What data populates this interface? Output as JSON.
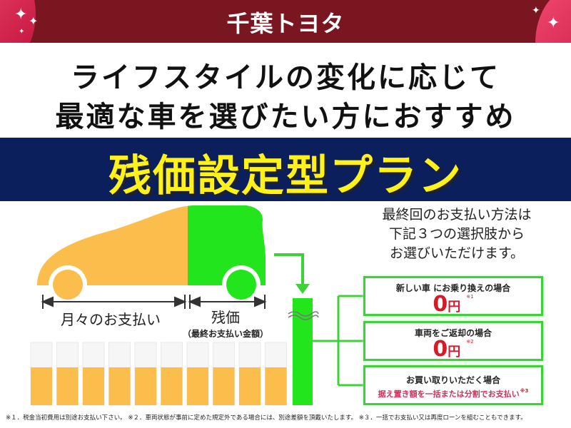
{
  "header": {
    "logo": "千葉トヨタ",
    "brand_color": "#7a1620"
  },
  "headline": {
    "line1": "ライフスタイルの変化に応じて",
    "line2": "最適な車を選びたい方におすすめ"
  },
  "plan_title": "残価設定型プラン",
  "diagram": {
    "monthly_label": "月々のお支払い",
    "residual_label": "残価",
    "residual_sub": "（最終お支払い金額）",
    "monthly_color": "#fbbd4c",
    "residual_color": "#22e51c"
  },
  "intro": {
    "line1": "最終回のお支払い方法は",
    "line2": "下記３つの選択肢から",
    "line3": "お選びいただけます。"
  },
  "options": [
    {
      "title": "新しい車 にお乗り換えの場合",
      "amount": "0",
      "unit": "円",
      "note": "※1"
    },
    {
      "title": "車両をご返却の場合",
      "amount": "0",
      "unit": "円",
      "note": "※2"
    },
    {
      "title": "お買い取りいただく場合",
      "detail": "据え置き額を一括または分割でお支払い",
      "note": "※3"
    }
  ],
  "footer": "※１．税金当初費用は別途お支払い下さい。 ※２．車両状態が事前に定めた規定外である場合には、別途差額を頂戴いたします。 ※３．一括でお支払い又は再度ローンを組むこともできます。"
}
